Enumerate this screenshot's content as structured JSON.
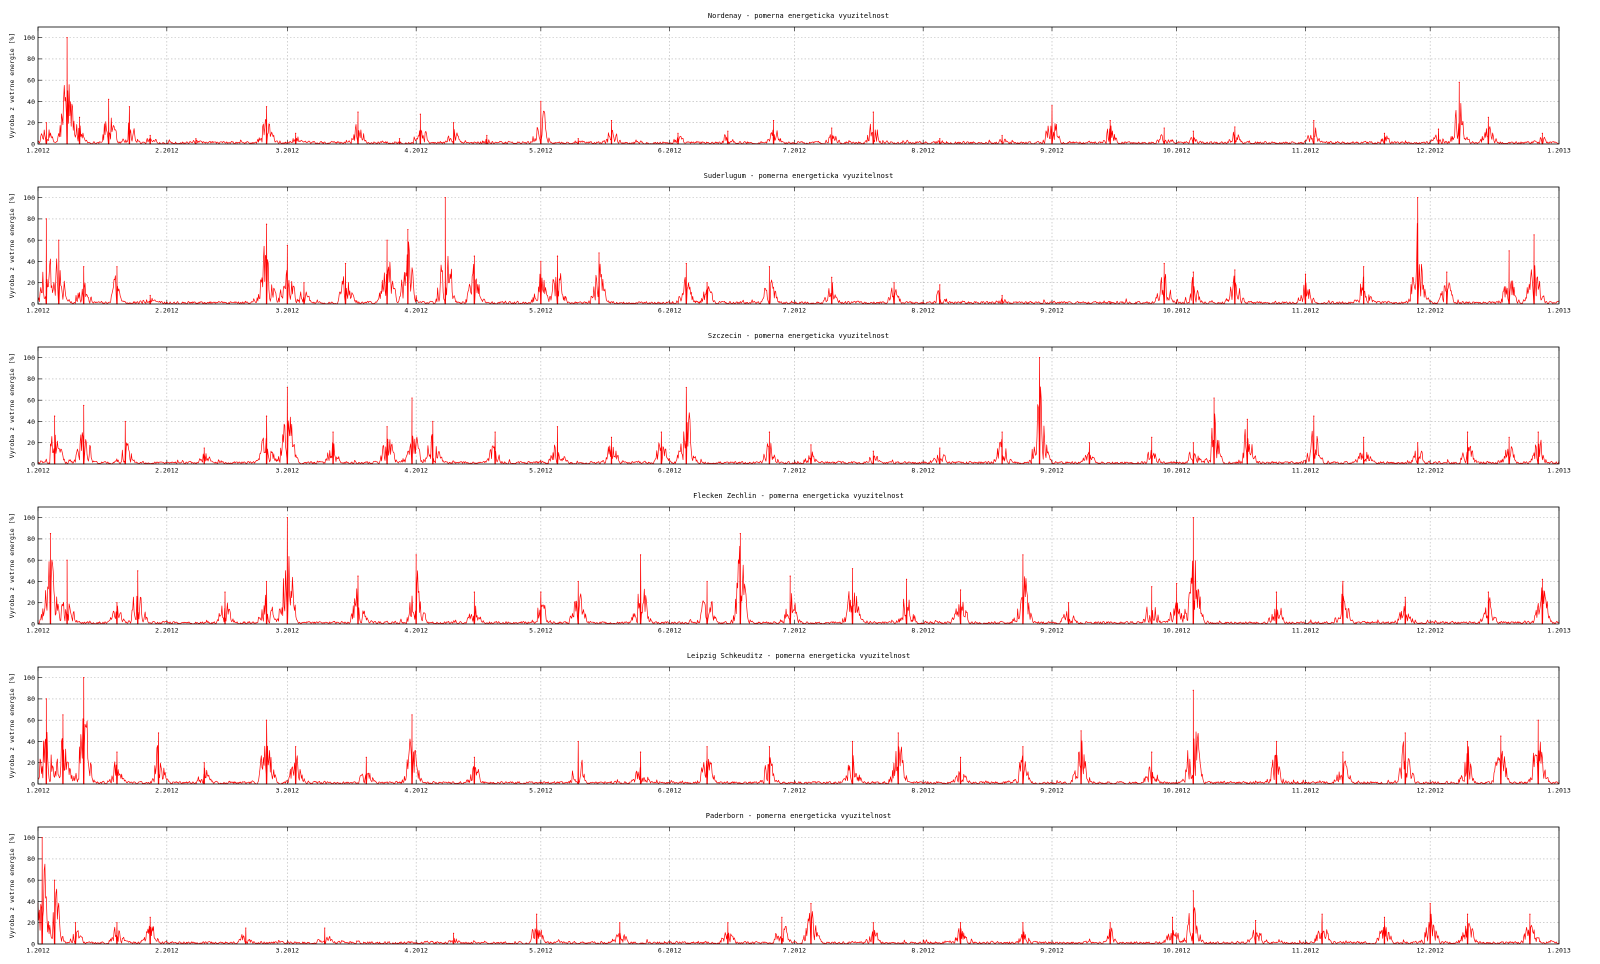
{
  "chart_data": [
    {
      "type": "line",
      "title": "Nordenay - pomerna energeticka vyuzitelnost",
      "ylabel": "Vyroba z vetrne energie [%]",
      "ylim": [
        0,
        110
      ],
      "yticks": [
        0,
        20,
        40,
        60,
        80,
        100
      ],
      "xlim": [
        "2012-01-01",
        "2013-01-01"
      ],
      "xticks": [
        "1.2012",
        "2.2012",
        "3.2012",
        "4.2012",
        "5.2012",
        "6.2012",
        "7.2012",
        "8.2012",
        "9.2012",
        "10.2012",
        "11.2012",
        "12.2012",
        "1.2013"
      ],
      "grid": true,
      "color": "#ff0000",
      "series": [
        {
          "x": [
            "2012-01-03",
            "2012-01-08",
            "2012-01-11",
            "2012-01-18",
            "2012-01-23",
            "2012-01-28",
            "2012-02-08",
            "2012-02-25",
            "2012-03-03",
            "2012-03-18",
            "2012-03-28",
            "2012-04-02",
            "2012-04-10",
            "2012-04-18",
            "2012-05-01",
            "2012-05-10",
            "2012-05-18",
            "2012-06-03",
            "2012-06-15",
            "2012-06-26",
            "2012-07-10",
            "2012-07-20",
            "2012-08-05",
            "2012-08-20",
            "2012-09-01",
            "2012-09-15",
            "2012-09-28",
            "2012-10-05",
            "2012-10-15",
            "2012-11-03",
            "2012-11-20",
            "2012-12-03",
            "2012-12-08",
            "2012-12-15",
            "2012-12-28"
          ],
          "y": [
            20,
            100,
            25,
            42,
            35,
            8,
            5,
            35,
            10,
            30,
            5,
            28,
            20,
            8,
            40,
            5,
            22,
            10,
            12,
            22,
            15,
            30,
            5,
            8,
            36,
            22,
            15,
            12,
            16,
            22,
            10,
            14,
            58,
            25,
            10
          ]
        }
      ]
    },
    {
      "type": "line",
      "title": "Suderlugum - pomerna energeticka vyuzitelnost",
      "ylabel": "Vyroba z vetrne energie [%]",
      "ylim": [
        0,
        110
      ],
      "yticks": [
        0,
        20,
        40,
        60,
        80,
        100
      ],
      "xlim": [
        "2012-01-01",
        "2013-01-01"
      ],
      "xticks": [
        "1.2012",
        "2.2012",
        "3.2012",
        "4.2012",
        "5.2012",
        "6.2012",
        "7.2012",
        "8.2012",
        "9.2012",
        "10.2012",
        "11.2012",
        "12.2012",
        "1.2013"
      ],
      "grid": true,
      "color": "#ff0000",
      "series": [
        {
          "x": [
            "2012-01-03",
            "2012-01-06",
            "2012-01-12",
            "2012-01-20",
            "2012-01-28",
            "2012-02-25",
            "2012-03-01",
            "2012-03-05",
            "2012-03-15",
            "2012-03-25",
            "2012-03-30",
            "2012-04-08",
            "2012-04-15",
            "2012-05-01",
            "2012-05-05",
            "2012-05-15",
            "2012-06-05",
            "2012-06-10",
            "2012-06-25",
            "2012-07-10",
            "2012-07-25",
            "2012-08-05",
            "2012-08-20",
            "2012-09-15",
            "2012-09-28",
            "2012-10-05",
            "2012-10-15",
            "2012-11-01",
            "2012-11-15",
            "2012-11-28",
            "2012-12-05",
            "2012-12-20",
            "2012-12-26"
          ],
          "y": [
            80,
            60,
            35,
            35,
            8,
            75,
            55,
            20,
            38,
            60,
            70,
            100,
            45,
            40,
            45,
            48,
            38,
            20,
            35,
            25,
            20,
            18,
            8,
            2,
            38,
            30,
            32,
            28,
            35,
            100,
            30,
            50,
            65
          ]
        }
      ]
    },
    {
      "type": "line",
      "title": "Szczecin - pomerna energeticka vyuzitelnost",
      "ylabel": "Vyroba z vetrne energie [%]",
      "ylim": [
        0,
        110
      ],
      "yticks": [
        0,
        20,
        40,
        60,
        80,
        100
      ],
      "xlim": [
        "2012-01-01",
        "2013-01-01"
      ],
      "xticks": [
        "1.2012",
        "2.2012",
        "3.2012",
        "4.2012",
        "5.2012",
        "6.2012",
        "7.2012",
        "8.2012",
        "9.2012",
        "10.2012",
        "11.2012",
        "12.2012",
        "1.2013"
      ],
      "grid": true,
      "color": "#ff0000",
      "series": [
        {
          "x": [
            "2012-01-05",
            "2012-01-12",
            "2012-01-22",
            "2012-02-10",
            "2012-02-25",
            "2012-03-01",
            "2012-03-12",
            "2012-03-25",
            "2012-03-31",
            "2012-04-05",
            "2012-04-20",
            "2012-05-05",
            "2012-05-18",
            "2012-05-30",
            "2012-06-05",
            "2012-06-25",
            "2012-07-05",
            "2012-07-20",
            "2012-08-05",
            "2012-08-20",
            "2012-08-29",
            "2012-09-10",
            "2012-09-25",
            "2012-10-05",
            "2012-10-10",
            "2012-10-18",
            "2012-11-03",
            "2012-11-15",
            "2012-11-28",
            "2012-12-10",
            "2012-12-20",
            "2012-12-27"
          ],
          "y": [
            45,
            55,
            40,
            15,
            45,
            72,
            30,
            35,
            62,
            40,
            30,
            35,
            25,
            30,
            72,
            30,
            18,
            12,
            15,
            30,
            100,
            20,
            25,
            20,
            62,
            42,
            45,
            25,
            20,
            30,
            25,
            30
          ]
        }
      ]
    },
    {
      "type": "line",
      "title": "Flecken Zechlin - pomerna energeticka vyuzitelnost",
      "ylabel": "Vyroba z vetrne energie [%]",
      "ylim": [
        0,
        110
      ],
      "yticks": [
        0,
        20,
        40,
        60,
        80,
        100
      ],
      "xlim": [
        "2012-01-01",
        "2013-01-01"
      ],
      "xticks": [
        "1.2012",
        "2.2012",
        "3.2012",
        "4.2012",
        "5.2012",
        "6.2012",
        "7.2012",
        "8.2012",
        "9.2012",
        "10.2012",
        "11.2012",
        "12.2012",
        "1.2013"
      ],
      "grid": true,
      "color": "#ff0000",
      "series": [
        {
          "x": [
            "2012-01-04",
            "2012-01-08",
            "2012-01-20",
            "2012-01-25",
            "2012-02-15",
            "2012-02-25",
            "2012-03-01",
            "2012-03-18",
            "2012-04-01",
            "2012-04-15",
            "2012-05-01",
            "2012-05-10",
            "2012-05-25",
            "2012-06-10",
            "2012-06-18",
            "2012-06-30",
            "2012-07-15",
            "2012-07-28",
            "2012-08-10",
            "2012-08-25",
            "2012-09-05",
            "2012-09-25",
            "2012-10-01",
            "2012-10-05",
            "2012-10-25",
            "2012-11-10",
            "2012-11-25",
            "2012-12-15",
            "2012-12-28"
          ],
          "y": [
            85,
            60,
            20,
            50,
            30,
            40,
            100,
            45,
            65,
            30,
            30,
            40,
            65,
            40,
            85,
            45,
            52,
            42,
            32,
            65,
            20,
            35,
            38,
            100,
            30,
            40,
            25,
            30,
            42
          ]
        }
      ]
    },
    {
      "type": "line",
      "title": "Leipzig Schkeuditz - pomerna energeticka vyuzitelnost",
      "ylabel": "Vyroba z vetrne energie [%]",
      "ylim": [
        0,
        110
      ],
      "yticks": [
        0,
        20,
        40,
        60,
        80,
        100
      ],
      "xlim": [
        "2012-01-01",
        "2013-01-01"
      ],
      "xticks": [
        "1.2012",
        "2.2012",
        "3.2012",
        "4.2012",
        "5.2012",
        "6.2012",
        "7.2012",
        "8.2012",
        "9.2012",
        "10.2012",
        "11.2012",
        "12.2012",
        "1.2013"
      ],
      "grid": true,
      "color": "#ff0000",
      "series": [
        {
          "x": [
            "2012-01-03",
            "2012-01-07",
            "2012-01-12",
            "2012-01-20",
            "2012-01-30",
            "2012-02-10",
            "2012-02-25",
            "2012-03-03",
            "2012-03-20",
            "2012-03-31",
            "2012-04-15",
            "2012-05-10",
            "2012-05-25",
            "2012-06-10",
            "2012-06-25",
            "2012-07-15",
            "2012-07-26",
            "2012-08-10",
            "2012-08-25",
            "2012-09-08",
            "2012-09-25",
            "2012-10-05",
            "2012-10-25",
            "2012-11-10",
            "2012-11-25",
            "2012-12-10",
            "2012-12-18",
            "2012-12-27"
          ],
          "y": [
            80,
            65,
            100,
            30,
            48,
            20,
            60,
            35,
            25,
            65,
            25,
            40,
            30,
            35,
            35,
            40,
            48,
            25,
            35,
            50,
            30,
            88,
            40,
            30,
            48,
            40,
            45,
            60
          ]
        }
      ]
    },
    {
      "type": "line",
      "title": "Paderborn - pomerna energeticka vyuzitelnost",
      "ylabel": "Vyroba z vetrne energie [%]",
      "ylim": [
        0,
        110
      ],
      "yticks": [
        0,
        20,
        40,
        60,
        80,
        100
      ],
      "xlim": [
        "2012-01-01",
        "2013-01-01"
      ],
      "xticks": [
        "1.2012",
        "2.2012",
        "3.2012",
        "4.2012",
        "5.2012",
        "6.2012",
        "7.2012",
        "8.2012",
        "9.2012",
        "10.2012",
        "11.2012",
        "12.2012",
        "1.2013"
      ],
      "grid": true,
      "color": "#ff0000",
      "series": [
        {
          "x": [
            "2012-01-02",
            "2012-01-05",
            "2012-01-10",
            "2012-01-20",
            "2012-01-28",
            "2012-02-20",
            "2012-03-10",
            "2012-04-10",
            "2012-04-30",
            "2012-05-20",
            "2012-06-15",
            "2012-06-28",
            "2012-07-05",
            "2012-07-20",
            "2012-08-10",
            "2012-08-25",
            "2012-09-15",
            "2012-09-30",
            "2012-10-05",
            "2012-10-20",
            "2012-11-05",
            "2012-11-20",
            "2012-12-01",
            "2012-12-10",
            "2012-12-25"
          ],
          "y": [
            100,
            60,
            20,
            20,
            25,
            15,
            15,
            10,
            28,
            20,
            20,
            25,
            38,
            20,
            20,
            20,
            20,
            25,
            50,
            22,
            28,
            25,
            38,
            28,
            28
          ]
        }
      ]
    }
  ]
}
